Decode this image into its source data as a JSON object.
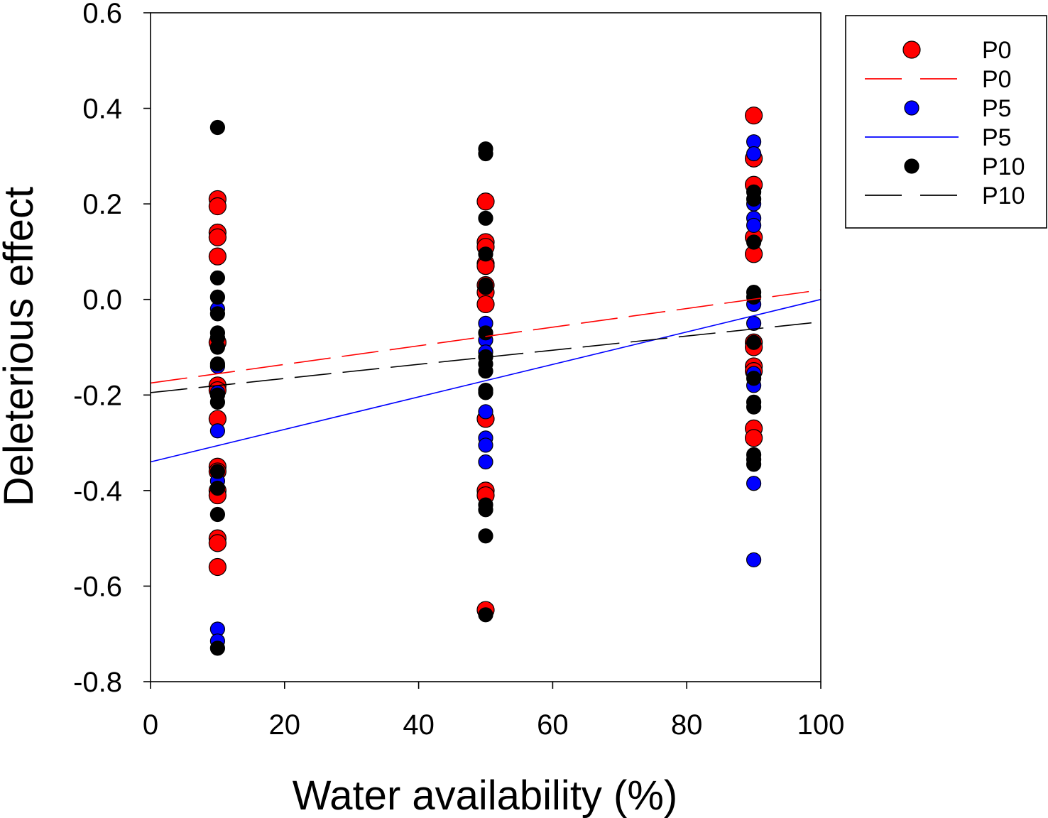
{
  "chart_data": {
    "type": "scatter",
    "title": "",
    "xlabel": "Water availability  (%)",
    "ylabel": "Deleterious effect",
    "xlim": [
      0,
      100
    ],
    "ylim": [
      -0.8,
      0.6
    ],
    "xticks": [
      0,
      20,
      40,
      60,
      80,
      100
    ],
    "yticks": [
      -0.8,
      -0.6,
      -0.4,
      -0.2,
      0.0,
      0.2,
      0.4,
      0.6
    ],
    "ytick_labels": [
      "-0.8",
      "-0.6",
      "-0.4",
      "-0.2",
      "0.0",
      "0.2",
      "0.4",
      "0.6"
    ],
    "grid": false,
    "legend_position": "outside-top-right",
    "legend": [
      {
        "label": "P0",
        "kind": "marker",
        "series": "P0"
      },
      {
        "label": "P0",
        "kind": "line",
        "series": "P0"
      },
      {
        "label": "P5",
        "kind": "marker",
        "series": "P5"
      },
      {
        "label": "P5",
        "kind": "line",
        "series": "P5"
      },
      {
        "label": "P10",
        "kind": "marker",
        "series": "P10"
      },
      {
        "label": "P10",
        "kind": "line",
        "series": "P10"
      }
    ],
    "series": [
      {
        "name": "P0",
        "color": "#ff0000",
        "marker": "large-circle",
        "line_style": "long-dash",
        "regression": {
          "intercept": -0.175,
          "slope": 0.00195
        },
        "points": [
          {
            "x": 10,
            "values": [
              0.21,
              0.195,
              0.14,
              0.13,
              0.09,
              -0.09,
              -0.18,
              -0.19,
              -0.25,
              -0.35,
              -0.36,
              -0.4,
              -0.41,
              -0.5,
              -0.51,
              -0.56
            ]
          },
          {
            "x": 50,
            "values": [
              0.205,
              0.12,
              0.11,
              0.075,
              0.07,
              0.03,
              0.015,
              -0.01,
              -0.25,
              -0.4,
              -0.41,
              -0.65
            ]
          },
          {
            "x": 90,
            "values": [
              0.385,
              0.295,
              0.24,
              0.13,
              0.095,
              -0.09,
              -0.1,
              -0.14,
              -0.15,
              -0.27,
              -0.29
            ]
          }
        ]
      },
      {
        "name": "P5",
        "color": "#0000ff",
        "marker": "circle",
        "line_style": "solid",
        "regression": {
          "intercept": -0.34,
          "slope": 0.0034
        },
        "points": [
          {
            "x": 10,
            "values": [
              -0.02,
              -0.14,
              -0.195,
              -0.275,
              -0.38,
              -0.69,
              -0.715
            ]
          },
          {
            "x": 50,
            "values": [
              -0.05,
              -0.085,
              -0.11,
              -0.235,
              -0.29,
              -0.305,
              -0.34
            ]
          },
          {
            "x": 90,
            "values": [
              0.33,
              0.305,
              0.2,
              0.17,
              0.155,
              -0.01,
              -0.05,
              -0.155,
              -0.18,
              -0.385,
              -0.545
            ]
          }
        ]
      },
      {
        "name": "P10",
        "color": "#000000",
        "marker": "circle",
        "line_style": "long-dash",
        "regression": {
          "intercept": -0.195,
          "slope": 0.00148
        },
        "points": [
          {
            "x": 10,
            "values": [
              0.36,
              0.045,
              0.005,
              -0.03,
              -0.07,
              -0.08,
              -0.1,
              -0.135,
              -0.2,
              -0.215,
              -0.36,
              -0.395,
              -0.45,
              -0.73
            ]
          },
          {
            "x": 50,
            "values": [
              0.315,
              0.305,
              0.17,
              0.095,
              0.03,
              0.025,
              -0.07,
              -0.12,
              -0.135,
              -0.15,
              -0.19,
              -0.195,
              -0.43,
              -0.44,
              -0.495,
              -0.66
            ]
          },
          {
            "x": 90,
            "values": [
              0.225,
              0.21,
              0.12,
              0.015,
              0.005,
              -0.09,
              -0.165,
              -0.215,
              -0.225,
              -0.325,
              -0.335,
              -0.345
            ]
          }
        ]
      }
    ]
  }
}
